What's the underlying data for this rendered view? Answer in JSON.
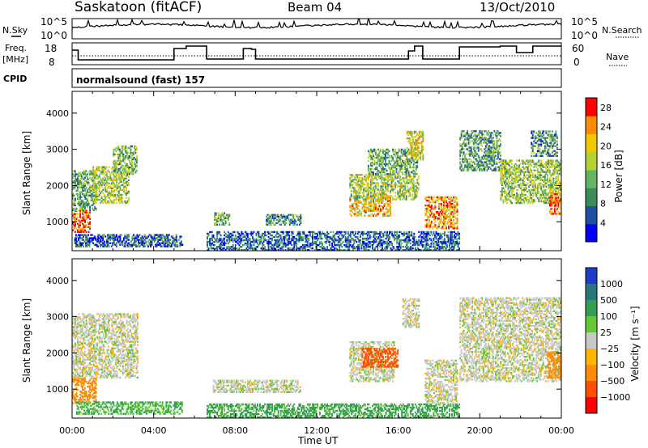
{
  "header": {
    "title": "Saskatoon (fitACF)",
    "beam": "Beam 04",
    "date": "13/Oct/2010"
  },
  "top_panels": {
    "nsky_label": "N.Sky",
    "nsky_ticks": [
      "10^5",
      "10^0"
    ],
    "nsearch_label": "N.Search",
    "nsearch_ticks": [
      "10^5",
      "10^0"
    ],
    "freq_label_line1": "Freq.",
    "freq_label_line2": "[MHz]",
    "freq_ticks": [
      "18",
      "8"
    ],
    "nave_label": "Nave",
    "nave_ticks": [
      "60",
      "0"
    ],
    "cpid_label": "CPID",
    "cpid_value": "normalsound (fast) 157"
  },
  "colors": {
    "power_scale": [
      "#0000ff",
      "#1e50a0",
      "#3c8c5a",
      "#64b464",
      "#b4d232",
      "#f0c800",
      "#ff8c00",
      "#ff0000"
    ],
    "velocity_scale": [
      "#1e3cc8",
      "#287878",
      "#32a050",
      "#64c832",
      "#c8c8c8",
      "#ffb400",
      "#ff8c00",
      "#ff5000",
      "#ff0000"
    ]
  },
  "chart_data": [
    {
      "type": "heatmap",
      "name": "power",
      "xlabel": "Time UT",
      "ylabel": "Slant Range [km]",
      "xlim": [
        "00:00",
        "24:00"
      ],
      "ylim": [
        200,
        4600
      ],
      "x_ticks": [
        "00:00",
        "04:00",
        "08:00",
        "12:00",
        "16:00",
        "20:00",
        "00:00"
      ],
      "y_ticks": [
        "1000",
        "2000",
        "3000",
        "4000"
      ],
      "colorbar_label": "Power [dB]",
      "colorbar_ticks": [
        "4",
        "8",
        "12",
        "16",
        "20",
        "24",
        "28"
      ],
      "colorbar_range": [
        0,
        30
      ],
      "regions": [
        {
          "t": [
            0.0,
            0.9
          ],
          "r": [
            700,
            1300
          ],
          "v": 27
        },
        {
          "t": [
            0.0,
            1.2
          ],
          "r": [
            1300,
            2400
          ],
          "v": 12
        },
        {
          "t": [
            1.0,
            2.8
          ],
          "r": [
            1500,
            2500
          ],
          "v": 16
        },
        {
          "t": [
            2.0,
            3.2
          ],
          "r": [
            2300,
            3100
          ],
          "v": 13
        },
        {
          "t": [
            0.1,
            5.4
          ],
          "r": [
            300,
            650
          ],
          "v": 6
        },
        {
          "t": [
            6.6,
            19.0
          ],
          "r": [
            200,
            700
          ],
          "v": 7
        },
        {
          "t": [
            6.9,
            7.7
          ],
          "r": [
            900,
            1250
          ],
          "v": 12
        },
        {
          "t": [
            9.5,
            11.2
          ],
          "r": [
            900,
            1200
          ],
          "v": 10
        },
        {
          "t": [
            13.6,
            15.6
          ],
          "r": [
            1150,
            1700
          ],
          "v": 21
        },
        {
          "t": [
            13.6,
            17.0
          ],
          "r": [
            1600,
            2300
          ],
          "v": 16
        },
        {
          "t": [
            14.5,
            16.9
          ],
          "r": [
            2300,
            3000
          ],
          "v": 12
        },
        {
          "t": [
            16.4,
            17.2
          ],
          "r": [
            2700,
            3500
          ],
          "v": 18
        },
        {
          "t": [
            17.3,
            18.9
          ],
          "r": [
            800,
            1700
          ],
          "v": 23
        },
        {
          "t": [
            19.0,
            21.0
          ],
          "r": [
            2400,
            3500
          ],
          "v": 11
        },
        {
          "t": [
            21.0,
            24.0
          ],
          "r": [
            1500,
            2700
          ],
          "v": 15
        },
        {
          "t": [
            22.5,
            23.8
          ],
          "r": [
            2800,
            3500
          ],
          "v": 10
        },
        {
          "t": [
            23.4,
            24.0
          ],
          "r": [
            1200,
            1800
          ],
          "v": 26
        }
      ]
    },
    {
      "type": "heatmap",
      "name": "velocity",
      "xlabel": "Time UT",
      "ylabel": "Slant Range [km]",
      "xlim": [
        "00:00",
        "24:00"
      ],
      "ylim": [
        200,
        4600
      ],
      "x_ticks": [
        "00:00",
        "04:00",
        "08:00",
        "12:00",
        "16:00",
        "20:00",
        "00:00"
      ],
      "y_ticks": [
        "1000",
        "2000",
        "3000",
        "4000"
      ],
      "colorbar_label": "Velocity [m s⁻¹]",
      "colorbar_ticks": [
        "1000",
        "500",
        "100",
        "25",
        "−25",
        "−100",
        "−500",
        "−1000"
      ],
      "regions": [
        {
          "t": [
            0.0,
            1.2
          ],
          "r": [
            600,
            1300
          ],
          "v": -220
        },
        {
          "t": [
            0.0,
            3.2
          ],
          "r": [
            1300,
            3100
          ],
          "v": 0
        },
        {
          "t": [
            0.2,
            5.4
          ],
          "r": [
            300,
            650
          ],
          "v": 60
        },
        {
          "t": [
            6.6,
            19.0
          ],
          "r": [
            200,
            600
          ],
          "v": 80
        },
        {
          "t": [
            6.9,
            11.2
          ],
          "r": [
            900,
            1250
          ],
          "v": 5
        },
        {
          "t": [
            13.6,
            15.8
          ],
          "r": [
            1200,
            2300
          ],
          "v": 5
        },
        {
          "t": [
            14.2,
            16.0
          ],
          "r": [
            1600,
            2100
          ],
          "v": -350
        },
        {
          "t": [
            16.2,
            17.0
          ],
          "r": [
            2700,
            3500
          ],
          "v": 0
        },
        {
          "t": [
            17.3,
            18.9
          ],
          "r": [
            600,
            1800
          ],
          "v": 0
        },
        {
          "t": [
            19.0,
            24.0
          ],
          "r": [
            1200,
            3500
          ],
          "v": 0
        },
        {
          "t": [
            23.3,
            24.0
          ],
          "r": [
            1300,
            2000
          ],
          "v": -200
        }
      ]
    }
  ]
}
